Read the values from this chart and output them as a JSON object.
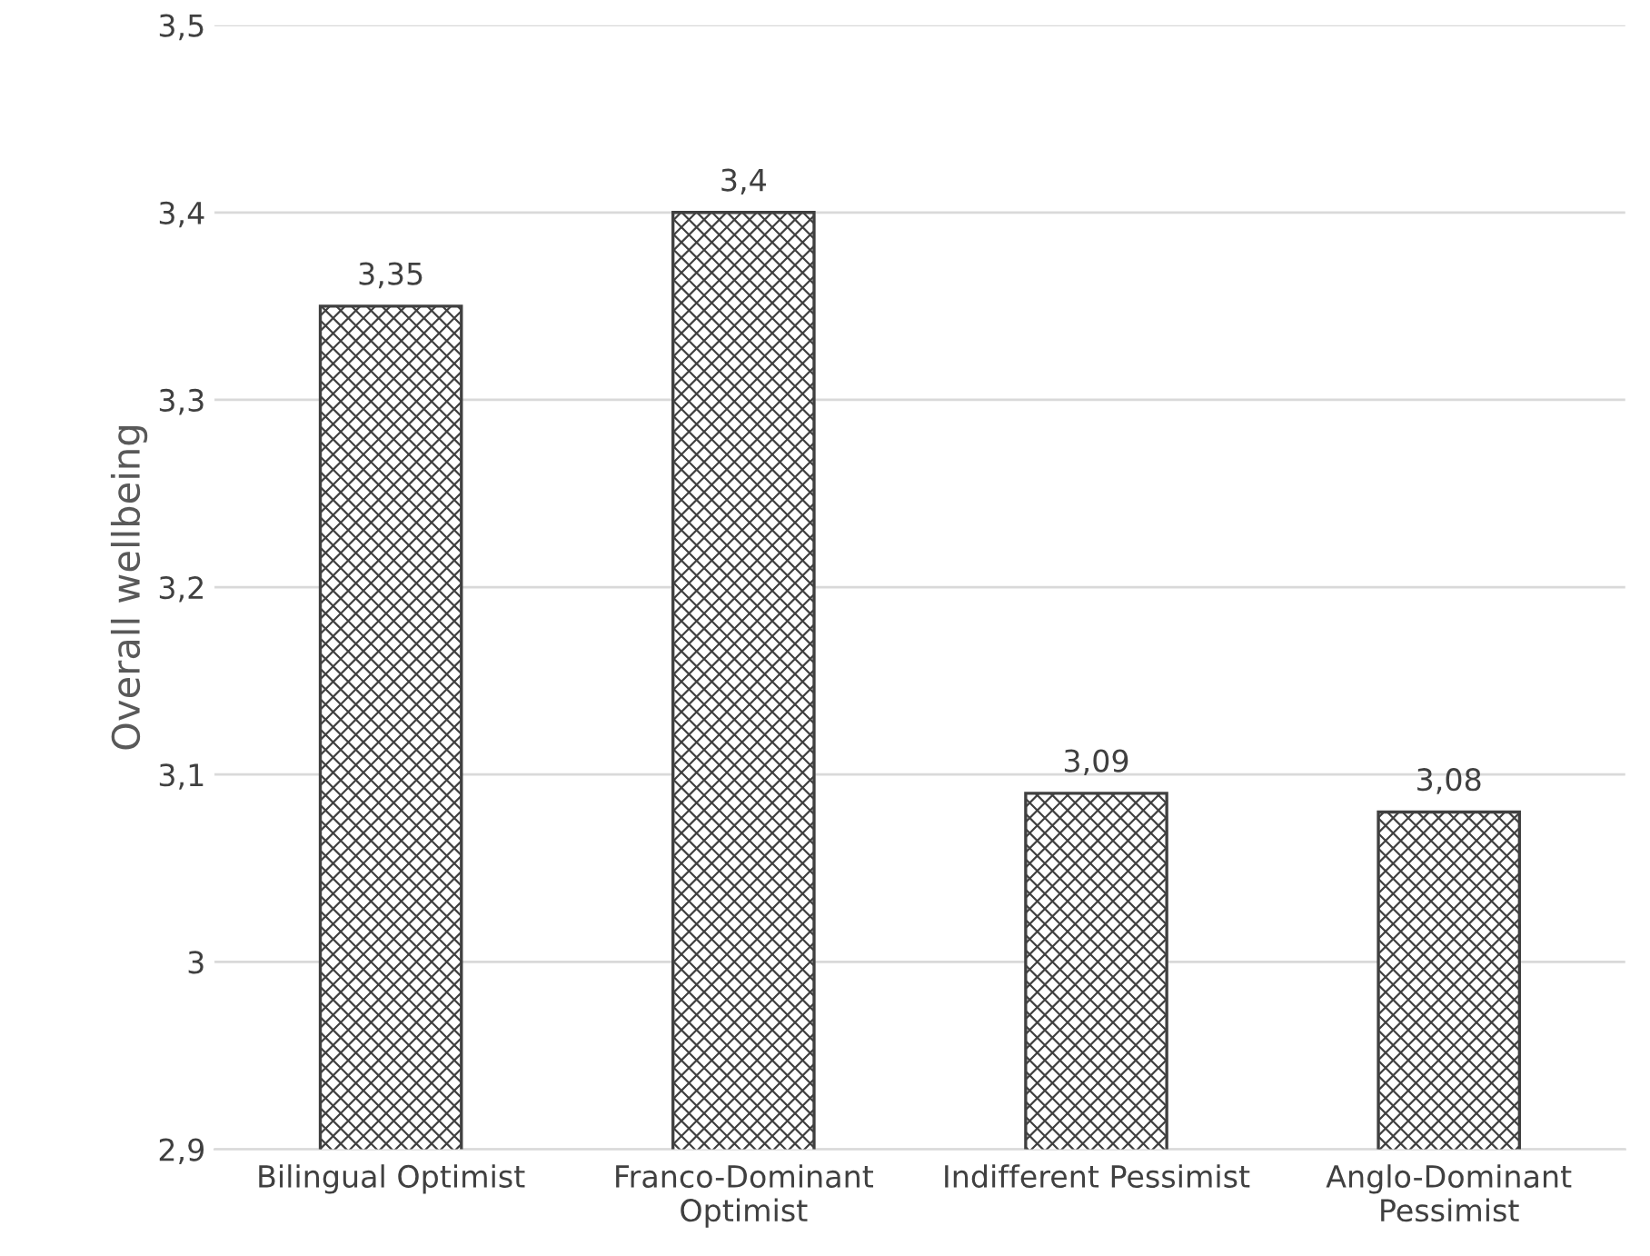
{
  "chart_data": {
    "type": "bar",
    "ylabel": "Overall wellbeing",
    "categories": [
      "Bilingual Optimist",
      "Franco-Dominant Optimist",
      "Indifferent Pessimist",
      "Anglo-Dominant Pessimist"
    ],
    "values": [
      3.35,
      3.4,
      3.09,
      3.08
    ],
    "value_labels": [
      "3,35",
      "3,4",
      "3,09",
      "3,08"
    ],
    "color": "#404040",
    "ylim": [
      2.9,
      3.5
    ],
    "yticks": [
      {
        "value": 2.9,
        "label": "2,9"
      },
      {
        "value": 3.0,
        "label": "3"
      },
      {
        "value": 3.1,
        "label": "3,1"
      },
      {
        "value": 3.2,
        "label": "3,2"
      },
      {
        "value": 3.3,
        "label": "3,3"
      },
      {
        "value": 3.4,
        "label": "3,4"
      },
      {
        "value": 3.5,
        "label": "3,5"
      }
    ],
    "grid": "y"
  }
}
